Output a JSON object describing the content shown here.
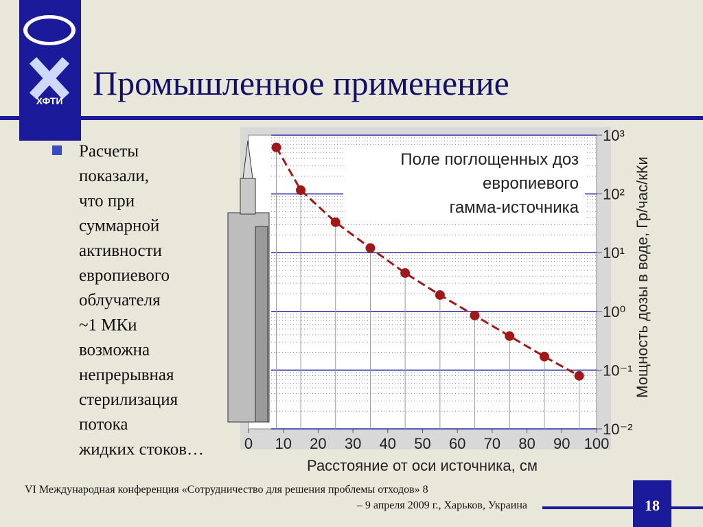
{
  "slide": {
    "title": "Промышленное применение",
    "logo_text": "ХФТИ",
    "bullet_lines": [
      "Расчеты",
      "показали,",
      "что при",
      "суммарной",
      "активности",
      "европиевого",
      "облучателя",
      "~1 МКи",
      "возможна",
      "непрерывная",
      "стерилизация",
      "потока",
      "жидких стоков…"
    ],
    "footer_lines": [
      "VI Международная конференция «Сотрудничество для решения проблемы отходов» 8",
      "– 9 апреля 2009 г., Харьков, Украина"
    ],
    "page_number": "18"
  },
  "chart_data": {
    "type": "line",
    "annotation_lines": [
      "Поле поглощенных доз",
      "европиевого",
      "гамма-источника"
    ],
    "x_label": "Расстояние от оси источника, см",
    "y_label": "Мощность дозы в воде, Гр/час/кКи",
    "x": [
      8,
      15,
      25,
      35,
      45,
      55,
      65,
      75,
      85,
      95
    ],
    "values": [
      620,
      116,
      33,
      12,
      4.5,
      1.9,
      0.85,
      0.38,
      0.17,
      0.08
    ],
    "color": "#a01818",
    "line_style": "dashed",
    "log_y": true,
    "grid": true,
    "xlim": [
      0,
      100
    ],
    "xticks": [
      0,
      10,
      20,
      30,
      40,
      50,
      60,
      70,
      80,
      90,
      100
    ],
    "ylim": [
      0.01,
      1000
    ],
    "yticks": [
      {
        "value": 0.01,
        "label": "10⁻²"
      },
      {
        "value": 0.1,
        "label": "10⁻¹"
      },
      {
        "value": 1,
        "label": "10⁰"
      },
      {
        "value": 10,
        "label": "10¹"
      },
      {
        "value": 100,
        "label": "10²"
      },
      {
        "value": 1000,
        "label": "10³"
      }
    ]
  }
}
